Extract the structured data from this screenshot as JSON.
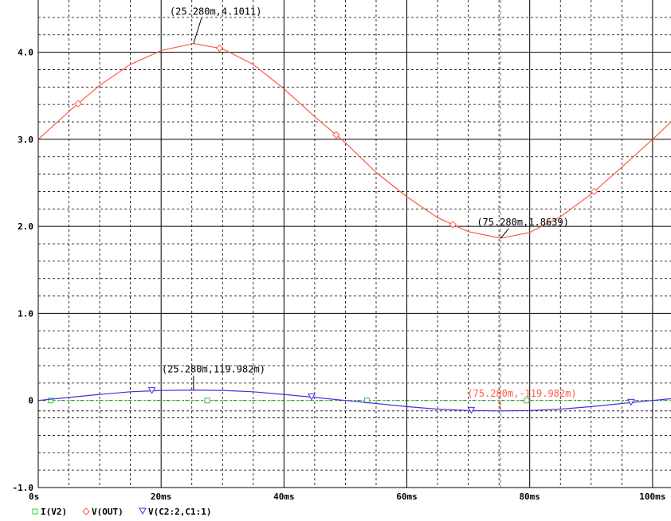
{
  "chart_data": {
    "type": "line",
    "x_unit": "ms",
    "xlim": [
      0,
      103
    ],
    "ylim": [
      -1.0,
      4.6
    ],
    "grid": true,
    "legend_placement": "bottom-left",
    "x_ticks": [
      {
        "value": 0,
        "label": "0s"
      },
      {
        "value": 20,
        "label": "20ms"
      },
      {
        "value": 40,
        "label": "40ms"
      },
      {
        "value": 60,
        "label": "60ms"
      },
      {
        "value": 80,
        "label": "80ms"
      },
      {
        "value": 100,
        "label": "100ms"
      }
    ],
    "y_ticks": [
      {
        "value": -1.0,
        "label": "-1.0"
      },
      {
        "value": 0,
        "label": "0"
      },
      {
        "value": 1.0,
        "label": "1.0"
      },
      {
        "value": 2.0,
        "label": "2.0"
      },
      {
        "value": 3.0,
        "label": "3.0"
      },
      {
        "value": 4.0,
        "label": "4.0"
      }
    ],
    "series": [
      {
        "name": "I(V2)",
        "color": "#33cc33",
        "style": "dotted",
        "marker": "square",
        "x": [
          0,
          103
        ],
        "y": [
          0,
          0
        ],
        "marker_x": [
          2,
          27.5,
          53.5,
          79.5
        ]
      },
      {
        "name": "V(OUT)",
        "color": "#ff5a46",
        "style": "solid",
        "marker": "diamond",
        "x": [
          0,
          5,
          10,
          15,
          20,
          25.28,
          30,
          35,
          40,
          45,
          50,
          55,
          60,
          65,
          70,
          75.28,
          80,
          85,
          90,
          95,
          100,
          103
        ],
        "y": [
          3.0,
          3.32,
          3.62,
          3.86,
          4.02,
          4.1,
          4.04,
          3.86,
          3.58,
          3.26,
          2.96,
          2.62,
          2.34,
          2.1,
          1.94,
          1.864,
          1.93,
          2.11,
          2.37,
          2.68,
          3.0,
          3.2
        ],
        "marker_x": [
          6.5,
          29.5,
          48.5,
          67.5,
          90.5
        ]
      },
      {
        "name": "V(C2:2,C1:1)",
        "color": "#4a2de0",
        "style": "solid",
        "marker": "triangle-down",
        "x": [
          0,
          5,
          10,
          15,
          20,
          25.28,
          30,
          35,
          40,
          45,
          50,
          55,
          60,
          65,
          70,
          75.28,
          80,
          85,
          90,
          95,
          100,
          103
        ],
        "y": [
          0,
          0.035,
          0.07,
          0.1,
          0.115,
          0.12,
          0.115,
          0.1,
          0.07,
          0.035,
          0,
          -0.035,
          -0.07,
          -0.1,
          -0.115,
          -0.12,
          -0.115,
          -0.1,
          -0.07,
          -0.035,
          0,
          0.02
        ],
        "marker_x": [
          18.5,
          44.5,
          70.5,
          96.5
        ]
      }
    ],
    "reference_lines": [
      {
        "y": -0.12,
        "color": "#000000",
        "style": "dashed"
      }
    ],
    "cursor_x": 75.28,
    "annotations": [
      {
        "text": "(25.280m,4.1011)",
        "x": 25.28,
        "y": 4.1011,
        "color": "#000000"
      },
      {
        "text": "(75.280m,1.8639)",
        "x": 75.28,
        "y": 1.8639,
        "color": "#000000"
      },
      {
        "text": "(25.280m,119.982m)",
        "x": 25.28,
        "y": 0.12,
        "color": "#000000"
      },
      {
        "text": "(75.280m,-119.982m)",
        "x": 75.28,
        "y": -0.12,
        "color": "#ff5a46"
      }
    ],
    "legend": [
      {
        "label": "I(V2)",
        "marker": "square",
        "color": "#33cc33"
      },
      {
        "label": "V(OUT)",
        "marker": "diamond",
        "color": "#ff5a46"
      },
      {
        "label": "V(C2:2,C1:1)",
        "marker": "triangle-down",
        "color": "#4a2de0"
      }
    ]
  }
}
